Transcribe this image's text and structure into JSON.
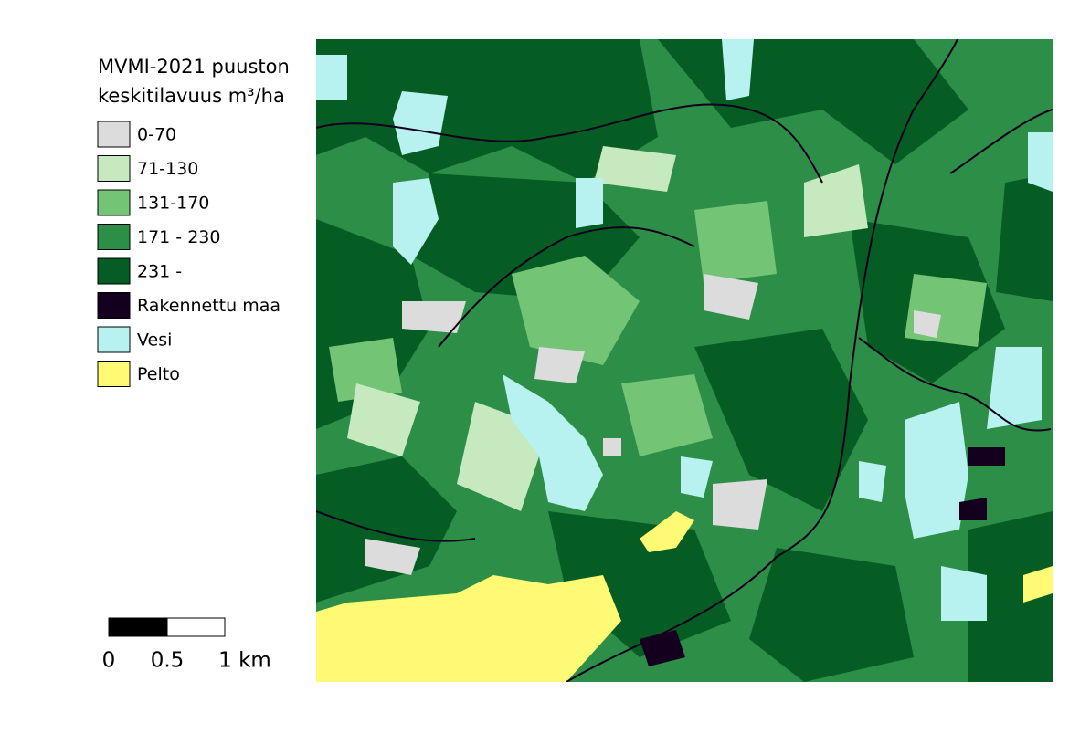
{
  "legend": {
    "title_lines": [
      "MVMI-2021 puuston",
      "keskitilavuus m³/ha"
    ],
    "items": [
      {
        "label": "0-70",
        "color": "#dcdcdc"
      },
      {
        "label": "71-130",
        "color": "#c7e9c0"
      },
      {
        "label": "131-170",
        "color": "#74c476"
      },
      {
        "label": "171 - 230",
        "color": "#2d8e47"
      },
      {
        "label": "231 -",
        "color": "#055d23"
      },
      {
        "label": "Rakennettu maa",
        "color": "#14001e"
      },
      {
        "label": "Vesi",
        "color": "#b8f2f0"
      },
      {
        "label": "Pelto",
        "color": "#fffa73"
      }
    ]
  },
  "scale_bar": {
    "labels": [
      "0",
      "0.5",
      "1 km"
    ]
  }
}
